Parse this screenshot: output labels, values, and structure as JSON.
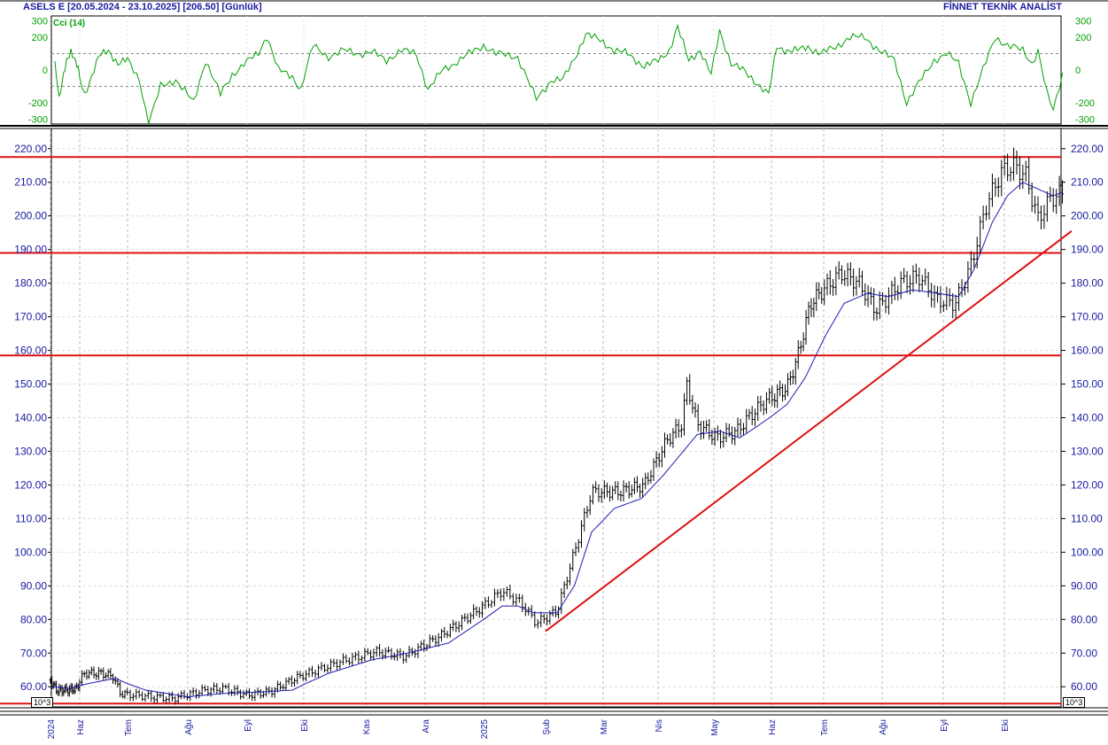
{
  "header": {
    "title_left": "ASELS E  [20.05.2024 - 23.10.2025]  [206.50]  [Günlük]",
    "title_right": "FİNNET TEKNİK ANALİST"
  },
  "indicator": {
    "label": "Cci (14)",
    "ticks": [
      "300",
      "200",
      "0",
      "-200",
      "-300"
    ],
    "color": "#00a000"
  },
  "colors": {
    "price_bar": "#000000",
    "moving_average": "#1c1cb4",
    "support_resistance": "#e01010",
    "trendline": "#e01010",
    "axis_text": "#1a1aa0",
    "grid": "#b8b8b8"
  },
  "axis": {
    "unit_label": "10^3",
    "x_labels": [
      "2024",
      "Haz",
      "Tem",
      "Ağu",
      "Eyl",
      "Eki",
      "Kas",
      "Ara",
      "2025",
      "Şub",
      "Mar",
      "Nis",
      "May",
      "Haz",
      "Tem",
      "Ağu",
      "Eyl",
      "Eki"
    ]
  },
  "chart_data": {
    "type": "bar",
    "title": "ASELS E",
    "period": "20.05.2024 - 23.10.2025",
    "last_price": 206.5,
    "interval": "Günlük",
    "ylim": [
      54,
      226
    ],
    "yticks": [
      60,
      70,
      80,
      90,
      100,
      110,
      120,
      130,
      140,
      150,
      160,
      170,
      180,
      190,
      200,
      210,
      220
    ],
    "x_categories": [
      "2024",
      "Haz",
      "Tem",
      "Ağu",
      "Eyl",
      "Eki",
      "Kas",
      "Ara",
      "2025",
      "Şub",
      "Mar",
      "Nis",
      "May",
      "Haz",
      "Tem",
      "Ağu",
      "Eyl",
      "Eki"
    ],
    "price_anchors": [
      [
        0,
        62
      ],
      [
        0.2,
        59
      ],
      [
        0.55,
        59
      ],
      [
        0.9,
        59.5
      ],
      [
        1.1,
        64
      ],
      [
        1.45,
        64
      ],
      [
        1.7,
        63
      ],
      [
        1.85,
        58
      ],
      [
        2.4,
        57
      ],
      [
        2.75,
        56.5
      ],
      [
        3.3,
        59
      ],
      [
        3.6,
        59.5
      ],
      [
        4.0,
        57.5
      ],
      [
        4.4,
        58.5
      ],
      [
        4.85,
        62.5
      ],
      [
        5.6,
        67.5
      ],
      [
        6.2,
        70.5
      ],
      [
        6.65,
        69
      ],
      [
        7.3,
        75.5
      ],
      [
        8.0,
        84
      ],
      [
        8.3,
        88.5
      ],
      [
        8.6,
        85
      ],
      [
        8.85,
        79
      ],
      [
        9.2,
        82.5
      ],
      [
        9.5,
        100
      ],
      [
        9.8,
        118
      ],
      [
        10.3,
        118
      ],
      [
        10.75,
        120
      ],
      [
        11.15,
        133
      ],
      [
        11.42,
        138
      ],
      [
        11.52,
        150
      ],
      [
        11.7,
        138
      ],
      [
        12.05,
        134
      ],
      [
        12.4,
        136
      ],
      [
        12.6,
        140
      ],
      [
        12.9,
        145
      ],
      [
        13.3,
        149
      ],
      [
        13.5,
        158
      ],
      [
        13.75,
        174
      ],
      [
        14.05,
        179
      ],
      [
        14.3,
        183
      ],
      [
        14.6,
        180
      ],
      [
        14.9,
        172
      ],
      [
        15.3,
        180
      ],
      [
        15.6,
        182
      ],
      [
        15.9,
        175
      ],
      [
        16.2,
        174
      ],
      [
        16.45,
        185
      ],
      [
        16.7,
        203
      ],
      [
        16.95,
        213
      ],
      [
        17.15,
        215
      ],
      [
        17.35,
        212
      ],
      [
        17.55,
        199
      ],
      [
        17.75,
        205
      ],
      [
        17.95,
        207
      ]
    ],
    "moving_average": {
      "anchors": [
        [
          0,
          60
        ],
        [
          0.7,
          59.5
        ],
        [
          1.2,
          61
        ],
        [
          1.75,
          62.5
        ],
        [
          2.3,
          59
        ],
        [
          3.0,
          57
        ],
        [
          3.6,
          58
        ],
        [
          4.3,
          58.5
        ],
        [
          4.8,
          59
        ],
        [
          5.4,
          64
        ],
        [
          6.1,
          68
        ],
        [
          6.7,
          70
        ],
        [
          7.4,
          73
        ],
        [
          8.0,
          80
        ],
        [
          8.3,
          84
        ],
        [
          8.55,
          84
        ],
        [
          8.8,
          82
        ],
        [
          9.2,
          82
        ],
        [
          9.5,
          90
        ],
        [
          9.8,
          106
        ],
        [
          10.2,
          113
        ],
        [
          10.7,
          116
        ],
        [
          11.1,
          123
        ],
        [
          11.45,
          130
        ],
        [
          11.7,
          135
        ],
        [
          12.1,
          136
        ],
        [
          12.45,
          134
        ],
        [
          12.8,
          138
        ],
        [
          13.3,
          144
        ],
        [
          13.65,
          152
        ],
        [
          14.05,
          165
        ],
        [
          14.35,
          174
        ],
        [
          14.75,
          177
        ],
        [
          15.1,
          176
        ],
        [
          15.5,
          178
        ],
        [
          15.9,
          177
        ],
        [
          16.25,
          176
        ],
        [
          16.5,
          184
        ],
        [
          16.8,
          198
        ],
        [
          17.05,
          206
        ],
        [
          17.3,
          210
        ],
        [
          17.55,
          208
        ],
        [
          17.8,
          206
        ],
        [
          17.95,
          207
        ]
      ]
    },
    "horizontal_lines": [
      217.5,
      189,
      158.5,
      55
    ],
    "trendline": {
      "from": [
        9.0,
        76.5
      ],
      "to": [
        18.1,
        195.5
      ]
    },
    "cci": {
      "name": "Cci (14)",
      "ylim": [
        -330,
        330
      ],
      "yticks": [
        300,
        200,
        0,
        -200,
        -300
      ],
      "dashed_levels": [
        100,
        -100
      ],
      "anchors": [
        [
          0.15,
          50
        ],
        [
          0.3,
          -180
        ],
        [
          0.55,
          60
        ],
        [
          0.7,
          120
        ],
        [
          0.95,
          0
        ],
        [
          1.1,
          -150
        ],
        [
          1.4,
          80
        ],
        [
          1.6,
          120
        ],
        [
          1.8,
          40
        ],
        [
          2.0,
          60
        ],
        [
          2.2,
          -60
        ],
        [
          2.35,
          -330
        ],
        [
          2.55,
          -100
        ],
        [
          2.8,
          -60
        ],
        [
          3.1,
          -200
        ],
        [
          3.3,
          60
        ],
        [
          3.55,
          -150
        ],
        [
          3.75,
          -30
        ],
        [
          3.95,
          40
        ],
        [
          4.2,
          100
        ],
        [
          4.35,
          210
        ],
        [
          4.55,
          0
        ],
        [
          4.8,
          -40
        ],
        [
          4.95,
          -120
        ],
        [
          5.15,
          150
        ],
        [
          5.4,
          80
        ],
        [
          5.65,
          120
        ],
        [
          5.9,
          100
        ],
        [
          6.1,
          110
        ],
        [
          6.35,
          60
        ],
        [
          6.6,
          120
        ],
        [
          6.85,
          100
        ],
        [
          7.05,
          -120
        ],
        [
          7.3,
          0
        ],
        [
          7.5,
          40
        ],
        [
          7.75,
          100
        ],
        [
          8.0,
          150
        ],
        [
          8.2,
          100
        ],
        [
          8.55,
          80
        ],
        [
          8.85,
          -180
        ],
        [
          9.1,
          -60
        ],
        [
          9.3,
          -60
        ],
        [
          9.5,
          70
        ],
        [
          9.7,
          220
        ],
        [
          9.95,
          180
        ],
        [
          10.2,
          120
        ],
        [
          10.45,
          100
        ],
        [
          10.75,
          20
        ],
        [
          11.0,
          60
        ],
        [
          11.2,
          120
        ],
        [
          11.35,
          260
        ],
        [
          11.55,
          60
        ],
        [
          11.75,
          120
        ],
        [
          11.95,
          -30
        ],
        [
          12.1,
          240
        ],
        [
          12.3,
          40
        ],
        [
          12.5,
          0
        ],
        [
          12.75,
          -80
        ],
        [
          12.95,
          -150
        ],
        [
          13.1,
          140
        ],
        [
          13.3,
          120
        ],
        [
          13.5,
          120
        ],
        [
          13.7,
          140
        ],
        [
          13.95,
          100
        ],
        [
          14.2,
          140
        ],
        [
          14.45,
          200
        ],
        [
          14.7,
          200
        ],
        [
          14.95,
          120
        ],
        [
          15.2,
          60
        ],
        [
          15.4,
          -200
        ],
        [
          15.6,
          -80
        ],
        [
          15.85,
          60
        ],
        [
          16.05,
          100
        ],
        [
          16.25,
          40
        ],
        [
          16.45,
          -200
        ],
        [
          16.65,
          0
        ],
        [
          16.85,
          200
        ],
        [
          17.05,
          150
        ],
        [
          17.3,
          120
        ],
        [
          17.45,
          40
        ],
        [
          17.55,
          120
        ],
        [
          17.7,
          -150
        ],
        [
          17.8,
          -250
        ],
        [
          17.95,
          -20
        ]
      ]
    }
  }
}
